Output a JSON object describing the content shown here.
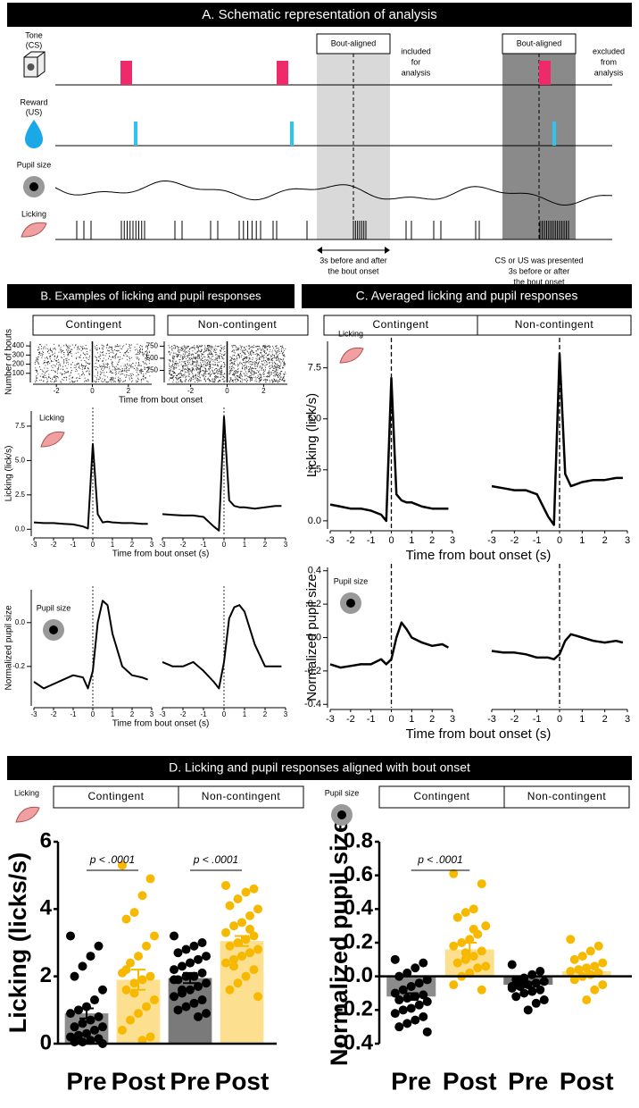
{
  "panel_a": {
    "title": "A. Schematic representation of analysis",
    "tone": [
      "Tone",
      "(CS)"
    ],
    "reward": [
      "Reward",
      "(US)"
    ],
    "pupil": "Pupil size",
    "licking": "Licking",
    "windows": [
      "Bout-aligned",
      "Bout-aligned"
    ],
    "included": [
      "included",
      "for",
      "analysis"
    ],
    "excluded": [
      "excluded",
      "from",
      "analysis"
    ],
    "included_note": [
      "3s before and after",
      "the bout onset"
    ],
    "excluded_note": [
      "CS or US was presented",
      "3s before or after",
      "the bout onset"
    ]
  },
  "panel_b": {
    "title": "B. Examples of licking and pupil responses",
    "groups": [
      "Contingent",
      "Non-contingent"
    ]
  },
  "panel_c": {
    "title": "C. Averaged licking and pupil responses",
    "groups": [
      "Contingent",
      "Non-contingent"
    ]
  },
  "panel_d": {
    "title": "D. Licking and pupil responses aligned with bout onset"
  },
  "chart_data": [
    {
      "type": "raster",
      "ylabel": "Number of bouts",
      "xlabel": "Time from bout onset",
      "xlim": [
        -3.3,
        3.3
      ],
      "xticks": [
        -2,
        0,
        2
      ],
      "ylim": [
        0,
        450
      ],
      "yticks": [
        100,
        200,
        300,
        400
      ]
    },
    {
      "type": "raster",
      "xlim": [
        -3.3,
        3.3
      ],
      "xticks": [
        -2,
        0,
        2
      ],
      "ylim": [
        0,
        850
      ],
      "yticks": [
        250,
        500,
        750
      ]
    },
    {
      "type": "line",
      "annotation": "Licking",
      "ylabel": "Licking (lick/s)",
      "xlabel": "Time from bout onset (s)",
      "color": "#000",
      "x": [
        -3,
        -2.5,
        -2,
        -1.5,
        -1,
        -0.5,
        -0.25,
        0,
        0.25,
        0.5,
        0.75,
        1,
        1.5,
        2,
        2.5,
        2.8
      ],
      "values": [
        0.5,
        0.45,
        0.45,
        0.4,
        0.35,
        0.2,
        0.05,
        6.2,
        1.1,
        0.5,
        0.55,
        0.5,
        0.45,
        0.45,
        0.4,
        0.4
      ],
      "xlim": [
        -3,
        3
      ],
      "xticks": [
        -3,
        -2,
        -1,
        0,
        1,
        2,
        3
      ],
      "ylim": [
        -0.5,
        8.6
      ],
      "yticks": [
        {
          "value": 0,
          "label": "0.0"
        },
        2.5,
        {
          "value": 5,
          "label": "5.0"
        },
        7.5
      ]
    },
    {
      "type": "line",
      "color": "#000",
      "x": [
        -3,
        -2.5,
        -2,
        -1.5,
        -1,
        -0.5,
        -0.25,
        0,
        0.25,
        0.5,
        0.75,
        1,
        1.5,
        2,
        2.5,
        2.8
      ],
      "values": [
        1.1,
        1.05,
        1.0,
        1.0,
        0.9,
        0.2,
        -0.1,
        8.2,
        2.1,
        1.7,
        1.6,
        1.6,
        1.5,
        1.6,
        1.7,
        1.7
      ],
      "xlim": [
        -3,
        3
      ],
      "xticks": [
        -3,
        -2,
        -1,
        0,
        1,
        2,
        3
      ],
      "ylim": [
        -0.5,
        8.6
      ]
    },
    {
      "type": "line",
      "annotation": "Pupil size",
      "ylabel": "Normalized pupil size",
      "xlabel": "Time from bout onset (s)",
      "color": "#000",
      "x": [
        -3,
        -2.5,
        -2,
        -1.5,
        -1,
        -0.5,
        -0.25,
        0,
        0.25,
        0.5,
        0.75,
        1,
        1.5,
        2,
        2.5,
        2.8
      ],
      "values": [
        -0.27,
        -0.3,
        -0.28,
        -0.26,
        -0.24,
        -0.25,
        -0.3,
        -0.22,
        0.0,
        0.1,
        0.08,
        -0.05,
        -0.2,
        -0.24,
        -0.25,
        -0.26
      ],
      "xlim": [
        -3,
        3
      ],
      "xticks": [
        -3,
        -2,
        -1,
        0,
        1,
        2,
        3
      ],
      "ylim": [
        -0.38,
        0.15
      ],
      "yticks": [
        -0.2,
        {
          "value": 0,
          "label": "0.0"
        }
      ]
    },
    {
      "type": "line",
      "color": "#000",
      "x": [
        -3,
        -2.5,
        -2,
        -1.5,
        -1,
        -0.5,
        -0.25,
        0,
        0.25,
        0.5,
        0.75,
        1,
        1.5,
        2,
        2.5,
        2.8
      ],
      "values": [
        -0.18,
        -0.2,
        -0.2,
        -0.18,
        -0.22,
        -0.27,
        -0.3,
        -0.18,
        0.02,
        0.07,
        0.08,
        0.05,
        -0.1,
        -0.2,
        -0.2,
        -0.2
      ],
      "xlim": [
        -3,
        3
      ],
      "xticks": [
        -3,
        -2,
        -1,
        0,
        1,
        2,
        3
      ],
      "ylim": [
        -0.38,
        0.15
      ]
    },
    {
      "type": "line",
      "annotation": "Licking",
      "ylabel": "Licking (lick/s)",
      "xlabel": "Time from bout onset (s)",
      "color": "#000",
      "x": [
        -3,
        -2.5,
        -2,
        -1.5,
        -1,
        -0.5,
        -0.25,
        0,
        0.25,
        0.5,
        0.75,
        1,
        1.5,
        2,
        2.5,
        2.8
      ],
      "values": [
        0.8,
        0.7,
        0.6,
        0.6,
        0.5,
        0.3,
        0.0,
        7.0,
        1.3,
        1.0,
        0.9,
        0.9,
        0.7,
        0.6,
        0.6,
        0.6
      ],
      "xlim": [
        -3,
        3
      ],
      "xticks": [
        -3,
        -2,
        -1,
        0,
        1,
        2,
        3
      ],
      "ylim": [
        -0.4,
        8.8
      ],
      "yticks": [
        {
          "value": 0,
          "label": "0.0"
        },
        2.5,
        {
          "value": 5,
          "label": "5.0"
        },
        7.5
      ]
    },
    {
      "type": "line",
      "color": "#000",
      "x": [
        -3,
        -2.5,
        -2,
        -1.5,
        -1,
        -0.5,
        -0.25,
        0,
        0.25,
        0.5,
        0.75,
        1,
        1.5,
        2,
        2.5,
        2.8
      ],
      "values": [
        1.7,
        1.6,
        1.5,
        1.5,
        1.3,
        0.2,
        -0.2,
        8.2,
        2.3,
        1.7,
        1.8,
        1.9,
        2.0,
        2.0,
        2.1,
        2.1
      ],
      "xlim": [
        -3,
        3
      ],
      "xticks": [
        -3,
        -2,
        -1,
        0,
        1,
        2,
        3
      ],
      "ylim": [
        -0.4,
        8.8
      ]
    },
    {
      "type": "line",
      "annotation": "Pupil size",
      "ylabel": "Normalized pupil size",
      "xlabel": "Time from bout onset (s)",
      "color": "#000",
      "x": [
        -3,
        -2.5,
        -2,
        -1.5,
        -1,
        -0.5,
        -0.25,
        0,
        0.25,
        0.5,
        0.75,
        1,
        1.5,
        2,
        2.5,
        2.8
      ],
      "values": [
        -0.16,
        -0.18,
        -0.17,
        -0.16,
        -0.16,
        -0.13,
        -0.16,
        -0.13,
        0.0,
        0.09,
        0.05,
        0.0,
        -0.03,
        -0.05,
        -0.04,
        -0.06
      ],
      "xlim": [
        -3,
        3
      ],
      "xticks": [
        -3,
        -2,
        -1,
        0,
        1,
        2,
        3
      ],
      "ylim": [
        -0.42,
        0.42
      ],
      "yticks": [
        -0.4,
        -0.2,
        {
          "value": 0,
          "label": "0.0"
        },
        0.2,
        0.4
      ]
    },
    {
      "type": "line",
      "color": "#000",
      "x": [
        -3,
        -2.5,
        -2,
        -1.5,
        -1,
        -0.5,
        -0.25,
        0,
        0.25,
        0.5,
        0.75,
        1,
        1.5,
        2,
        2.5,
        2.8
      ],
      "values": [
        -0.08,
        -0.09,
        -0.09,
        -0.1,
        -0.12,
        -0.12,
        -0.13,
        -0.1,
        -0.02,
        0.02,
        0.01,
        0.0,
        -0.02,
        -0.03,
        -0.02,
        -0.03
      ],
      "xlim": [
        -3,
        3
      ],
      "xticks": [
        -3,
        -2,
        -1,
        0,
        1,
        2,
        3
      ],
      "ylim": [
        -0.42,
        0.42
      ]
    },
    {
      "type": "strip_bar",
      "annotation": "Licking",
      "ylabel": "Licking (licks/s)",
      "groups": [
        "Contingent",
        "Non-contingent"
      ],
      "categories": [
        "Pre",
        "Post",
        "Pre",
        "Post"
      ],
      "colors": [
        "#8c8c8c",
        "#fde08f",
        "#7a7a7a",
        "#fde08f"
      ],
      "point_colors": [
        "#000",
        "#f7b900",
        "#000",
        "#f7b900"
      ],
      "values": [
        0.9,
        1.9,
        1.95,
        3.05
      ],
      "errors": [
        0.15,
        0.3,
        0.15,
        0.15
      ],
      "points": [
        [
          3.2,
          2.9,
          2.6,
          2.3,
          2.0,
          1.6,
          1.3,
          1.1,
          1.0,
          0.9,
          0.8,
          0.7,
          0.6,
          0.5,
          0.5,
          0.4,
          0.3,
          0.25,
          0.2,
          0.15,
          0.1,
          0.05,
          0.05,
          0.0
        ],
        [
          5.3,
          4.9,
          4.4,
          3.9,
          3.7,
          3.2,
          2.9,
          2.6,
          2.4,
          2.1,
          2.0,
          1.9,
          1.8,
          1.6,
          1.3,
          1.1,
          0.9,
          0.7,
          0.4,
          0.2,
          0.1,
          1.5,
          2.2
        ],
        [
          3.2,
          3.0,
          2.9,
          2.8,
          2.7,
          2.6,
          2.5,
          2.4,
          2.3,
          2.2,
          2.1,
          2.0,
          2.0,
          1.9,
          1.8,
          1.7,
          1.6,
          1.5,
          1.4,
          1.3,
          1.2,
          1.1,
          1.0,
          0.9,
          0.8,
          2.4,
          1.6,
          1.9
        ],
        [
          4.7,
          4.6,
          4.5,
          4.3,
          4.1,
          4.0,
          3.8,
          3.6,
          3.5,
          3.3,
          3.2,
          3.1,
          3.0,
          2.9,
          2.8,
          2.7,
          2.6,
          2.5,
          2.4,
          2.2,
          2.0,
          1.8,
          1.6,
          1.4,
          3.4,
          2.6,
          2.3
        ]
      ],
      "annotations": [
        "p < .0001",
        "p < .0001"
      ],
      "ylim": [
        0,
        6
      ],
      "yticks": [
        0,
        2,
        4,
        6
      ]
    },
    {
      "type": "strip_bar",
      "annotation": "Pupil size",
      "ylabel": "Normalized pupil size",
      "groups": [
        "Contingent",
        "Non-contingent"
      ],
      "categories": [
        "Pre",
        "Post",
        "Pre",
        "Post"
      ],
      "colors": [
        "#8c8c8c",
        "#fde08f",
        "#7a7a7a",
        "#fde08f"
      ],
      "point_colors": [
        "#000",
        "#f7b900",
        "#000",
        "#f7b900"
      ],
      "values": [
        -0.12,
        0.16,
        -0.05,
        0.03
      ],
      "errors": [
        0.02,
        0.04,
        0.015,
        0.02
      ],
      "points": [
        [
          0.1,
          0.08,
          0.05,
          0.02,
          0.0,
          -0.02,
          -0.04,
          -0.06,
          -0.08,
          -0.1,
          -0.11,
          -0.12,
          -0.13,
          -0.14,
          -0.15,
          -0.17,
          -0.19,
          -0.2,
          -0.22,
          -0.24,
          -0.26,
          -0.28,
          -0.3,
          -0.33
        ],
        [
          0.61,
          0.55,
          0.4,
          0.38,
          0.35,
          0.3,
          0.25,
          0.22,
          0.2,
          0.18,
          0.15,
          0.12,
          0.1,
          0.08,
          0.06,
          0.05,
          0.02,
          0.0,
          -0.05,
          -0.08,
          0.28,
          0.14
        ],
        [
          0.07,
          0.03,
          0.01,
          -0.01,
          -0.02,
          -0.03,
          -0.04,
          -0.05,
          -0.06,
          -0.07,
          -0.08,
          -0.09,
          -0.1,
          -0.12,
          -0.14,
          -0.16,
          -0.2,
          -0.04,
          -0.06
        ],
        [
          0.22,
          0.18,
          0.15,
          0.12,
          0.1,
          0.08,
          0.06,
          0.05,
          0.04,
          0.03,
          0.02,
          0.01,
          0.0,
          -0.02,
          -0.05,
          -0.08,
          -0.14
        ]
      ],
      "annotations": [
        "p < .0001"
      ],
      "ylim": [
        -0.4,
        0.8
      ],
      "yticks": [
        -0.4,
        -0.2,
        {
          "value": 0,
          "label": "0.0"
        },
        0.2,
        0.4,
        0.6,
        0.8
      ]
    }
  ]
}
